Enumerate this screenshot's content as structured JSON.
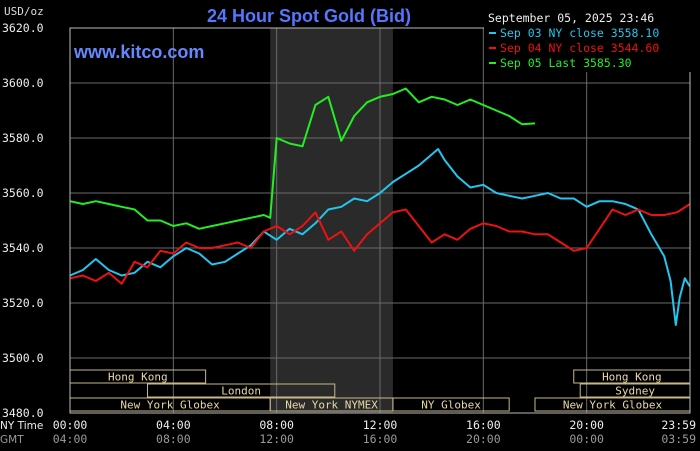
{
  "chart_data": {
    "type": "line",
    "title": "24 Hour Spot Gold (Bid)",
    "ylabel": "USD/oz",
    "watermark": "www.kitco.com",
    "timestamp": "September 05, 2025 23:46",
    "ylim": [
      3480,
      3620
    ],
    "y_ticks": [
      "3620.0",
      "3600.0",
      "3580.0",
      "3560.0",
      "3540.0",
      "3520.0",
      "3500.0",
      "3480.0"
    ],
    "x_range_hours": [
      0,
      24
    ],
    "x_axis_rows": [
      {
        "label": "NY Time",
        "ticks": [
          "00:00",
          "04:00",
          "08:00",
          "12:00",
          "16:00",
          "20:00",
          "23:59"
        ]
      },
      {
        "label": "GMT",
        "ticks": [
          "04:00",
          "08:00",
          "12:00",
          "16:00",
          "20:00",
          "00:00",
          "03:59"
        ]
      }
    ],
    "legend": [
      {
        "text": "Sep 03 NY close 3558.10",
        "color": "#22c6ee"
      },
      {
        "text": "Sep 04 NY close 3544.60",
        "color": "#ee1111"
      },
      {
        "text": "Sep 05 Last 3585.30",
        "color": "#22ee22"
      }
    ],
    "shaded_region": {
      "start": 7.75,
      "end": 12.5
    },
    "series": [
      {
        "name": "Sep 03",
        "color": "#22c6ee",
        "points": [
          [
            0,
            3530
          ],
          [
            0.5,
            3532
          ],
          [
            1,
            3536
          ],
          [
            1.5,
            3532
          ],
          [
            2,
            3530
          ],
          [
            2.5,
            3531
          ],
          [
            3,
            3535
          ],
          [
            3.5,
            3533
          ],
          [
            4,
            3537
          ],
          [
            4.5,
            3540
          ],
          [
            5,
            3538
          ],
          [
            5.5,
            3534
          ],
          [
            6,
            3535
          ],
          [
            6.5,
            3538
          ],
          [
            7,
            3541
          ],
          [
            7.5,
            3546
          ],
          [
            8,
            3543
          ],
          [
            8.5,
            3547
          ],
          [
            9,
            3545
          ],
          [
            9.5,
            3549
          ],
          [
            10,
            3554
          ],
          [
            10.5,
            3555
          ],
          [
            11,
            3558
          ],
          [
            11.5,
            3557
          ],
          [
            12,
            3560
          ],
          [
            12.5,
            3564
          ],
          [
            13,
            3567
          ],
          [
            13.5,
            3570
          ],
          [
            14,
            3574
          ],
          [
            14.25,
            3576
          ],
          [
            14.5,
            3572
          ],
          [
            15,
            3566
          ],
          [
            15.5,
            3562
          ],
          [
            16,
            3563
          ],
          [
            16.5,
            3560
          ],
          [
            17,
            3559
          ],
          [
            17.5,
            3558
          ],
          [
            18,
            3559
          ],
          [
            18.5,
            3560
          ],
          [
            19,
            3558
          ],
          [
            19.5,
            3558
          ],
          [
            20,
            3555
          ],
          [
            20.5,
            3557
          ],
          [
            21,
            3557
          ],
          [
            21.5,
            3556
          ],
          [
            22,
            3554
          ],
          [
            22.5,
            3545
          ],
          [
            23,
            3537
          ],
          [
            23.25,
            3528
          ],
          [
            23.45,
            3512
          ],
          [
            23.6,
            3522
          ],
          [
            23.8,
            3529
          ],
          [
            24,
            3526
          ]
        ]
      },
      {
        "name": "Sep 04",
        "color": "#ee1111",
        "points": [
          [
            0,
            3529
          ],
          [
            0.5,
            3530
          ],
          [
            1,
            3528
          ],
          [
            1.5,
            3531
          ],
          [
            2,
            3527
          ],
          [
            2.5,
            3535
          ],
          [
            3,
            3533
          ],
          [
            3.5,
            3539
          ],
          [
            4,
            3538
          ],
          [
            4.5,
            3542
          ],
          [
            5,
            3540
          ],
          [
            5.5,
            3540
          ],
          [
            6,
            3541
          ],
          [
            6.5,
            3542
          ],
          [
            7,
            3540
          ],
          [
            7.5,
            3546
          ],
          [
            8,
            3548
          ],
          [
            8.5,
            3545
          ],
          [
            9,
            3548
          ],
          [
            9.5,
            3553
          ],
          [
            10,
            3543
          ],
          [
            10.5,
            3546
          ],
          [
            11,
            3539
          ],
          [
            11.5,
            3545
          ],
          [
            12,
            3549
          ],
          [
            12.5,
            3553
          ],
          [
            13,
            3554
          ],
          [
            13.5,
            3548
          ],
          [
            14,
            3542
          ],
          [
            14.5,
            3545
          ],
          [
            15,
            3543
          ],
          [
            15.5,
            3547
          ],
          [
            16,
            3549
          ],
          [
            16.5,
            3548
          ],
          [
            17,
            3546
          ],
          [
            17.5,
            3546
          ],
          [
            18,
            3545
          ],
          [
            18.5,
            3545
          ],
          [
            19,
            3542
          ],
          [
            19.5,
            3539
          ],
          [
            20,
            3540
          ],
          [
            20.5,
            3547
          ],
          [
            21,
            3554
          ],
          [
            21.5,
            3552
          ],
          [
            22,
            3554
          ],
          [
            22.5,
            3552
          ],
          [
            23,
            3552
          ],
          [
            23.5,
            3553
          ],
          [
            24,
            3556
          ]
        ]
      },
      {
        "name": "Sep 05",
        "color": "#22ee22",
        "points": [
          [
            0,
            3557
          ],
          [
            0.5,
            3556
          ],
          [
            1,
            3557
          ],
          [
            1.5,
            3556
          ],
          [
            2,
            3555
          ],
          [
            2.5,
            3554
          ],
          [
            3,
            3550
          ],
          [
            3.5,
            3550
          ],
          [
            4,
            3548
          ],
          [
            4.5,
            3549
          ],
          [
            5,
            3547
          ],
          [
            5.5,
            3548
          ],
          [
            6,
            3549
          ],
          [
            6.5,
            3550
          ],
          [
            7,
            3551
          ],
          [
            7.5,
            3552
          ],
          [
            7.75,
            3551
          ],
          [
            8,
            3580
          ],
          [
            8.5,
            3578
          ],
          [
            9,
            3577
          ],
          [
            9.5,
            3592
          ],
          [
            10,
            3595
          ],
          [
            10.5,
            3579
          ],
          [
            11,
            3588
          ],
          [
            11.5,
            3593
          ],
          [
            12,
            3595
          ],
          [
            12.5,
            3596
          ],
          [
            13,
            3598
          ],
          [
            13.5,
            3593
          ],
          [
            14,
            3595
          ],
          [
            14.5,
            3594
          ],
          [
            15,
            3592
          ],
          [
            15.5,
            3594
          ],
          [
            16,
            3592
          ],
          [
            16.5,
            3590
          ],
          [
            17,
            3588
          ],
          [
            17.5,
            3585
          ],
          [
            18,
            3585.3
          ]
        ]
      }
    ],
    "sessions": [
      {
        "label": "Hong Kong",
        "start": 0,
        "end": 5.25,
        "row": 0
      },
      {
        "label": "Hong Kong",
        "start": 19.5,
        "end": 24,
        "row": 0
      },
      {
        "label": "London",
        "start": 3,
        "end": 10.25,
        "row": 1
      },
      {
        "label": "Sydney",
        "start": 19.75,
        "end": 24,
        "row": 1
      },
      {
        "label": "New York Globex",
        "start": 0,
        "end": 7.75,
        "row": 2
      },
      {
        "label": "New York NYMEX",
        "start": 7.75,
        "end": 12.5,
        "row": 2
      },
      {
        "label": "NY Globex",
        "start": 12.5,
        "end": 17,
        "row": 2
      },
      {
        "label": "New York Globex",
        "start": 18,
        "end": 24,
        "row": 2
      }
    ]
  }
}
